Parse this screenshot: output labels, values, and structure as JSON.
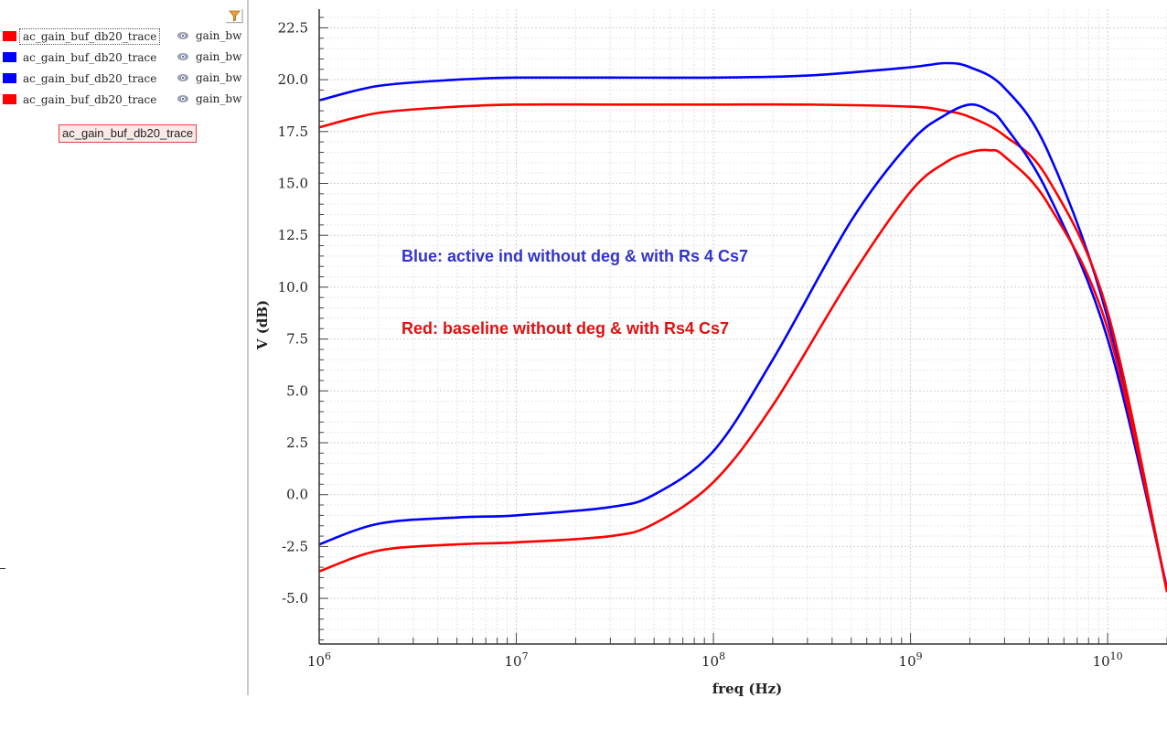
{
  "legend": {
    "items": [
      {
        "name": "ac_gain_buf_db20_trace",
        "bw": "gain_bw",
        "color": "#ff0000"
      },
      {
        "name": "ac_gain_buf_db20_trace",
        "bw": "gain_bw",
        "color": "#0000ff"
      },
      {
        "name": "ac_gain_buf_db20_trace",
        "bw": "gain_bw",
        "color": "#0000ff"
      },
      {
        "name": "ac_gain_buf_db20_trace",
        "bw": "gain_bw",
        "color": "#ff0000"
      }
    ],
    "selected_trace": "ac_gain_buf_db20_trace",
    "filter_icon": "filter-icon",
    "visibility_icon": "eye-icon"
  },
  "chart_data": {
    "type": "line",
    "x_scale": "log",
    "xlabel": "freq (Hz)",
    "ylabel": "V (dB)",
    "xlim": [
      1000000,
      20000000000
    ],
    "ylim": [
      -7.2,
      23.4
    ],
    "x_ticks": [
      {
        "value": 1000000,
        "base": "10",
        "exp": "6"
      },
      {
        "value": 10000000,
        "base": "10",
        "exp": "7"
      },
      {
        "value": 100000000,
        "base": "10",
        "exp": "8"
      },
      {
        "value": 1000000000,
        "base": "10",
        "exp": "9"
      },
      {
        "value": 10000000000,
        "base": "10",
        "exp": "10"
      }
    ],
    "y_ticks": [
      "22.5",
      "20.0",
      "17.5",
      "15.0",
      "12.5",
      "10.0",
      "7.5",
      "5.0",
      "2.5",
      "0.0",
      "-2.5",
      "-5.0"
    ],
    "grid": true,
    "annotations": [
      {
        "text": "Blue: active ind without deg & with Rs 4 Cs7",
        "color": "#3333cc"
      },
      {
        "text": "Red: baseline without deg & with Rs4 Cs7",
        "color": "#dd1111"
      }
    ],
    "series": [
      {
        "color": "#0000ff",
        "x": [
          1000000.0,
          2000000.0,
          5000000.0,
          10000000.0,
          30000000.0,
          100000000.0,
          300000000.0,
          1000000000.0,
          1500000000.0,
          2000000000.0,
          3000000000.0,
          5000000000.0,
          10000000000.0,
          20000000000.0
        ],
        "y": [
          19.0,
          19.7,
          20.0,
          20.1,
          20.1,
          20.1,
          20.2,
          20.6,
          20.8,
          20.6,
          19.6,
          16.5,
          8.5,
          -4.6
        ]
      },
      {
        "color": "#ff0000",
        "x": [
          1000000.0,
          2000000.0,
          5000000.0,
          10000000.0,
          30000000.0,
          100000000.0,
          300000000.0,
          1000000000.0,
          1500000000.0,
          2000000000.0,
          3000000000.0,
          5000000000.0,
          10000000000.0,
          20000000000.0
        ],
        "y": [
          17.7,
          18.4,
          18.7,
          18.8,
          18.8,
          18.8,
          18.8,
          18.7,
          18.5,
          18.2,
          17.3,
          15.2,
          8.8,
          -4.7
        ]
      },
      {
        "color": "#0000ff",
        "x": [
          1000000.0,
          2000000.0,
          5000000.0,
          10000000.0,
          30000000.0,
          50000000.0,
          100000000.0,
          200000000.0,
          500000000.0,
          1000000000.0,
          1500000000.0,
          2000000000.0,
          2500000000.0,
          3000000000.0,
          5000000000.0,
          10000000000.0,
          20000000000.0
        ],
        "y": [
          -2.4,
          -1.4,
          -1.1,
          -1.0,
          -0.6,
          0.0,
          2.1,
          6.5,
          13.2,
          17.0,
          18.3,
          18.8,
          18.5,
          17.8,
          14.5,
          7.5,
          -4.5
        ]
      },
      {
        "color": "#ff0000",
        "x": [
          1000000.0,
          2000000.0,
          5000000.0,
          10000000.0,
          30000000.0,
          50000000.0,
          100000000.0,
          200000000.0,
          500000000.0,
          1000000000.0,
          1500000000.0,
          2000000000.0,
          2500000000.0,
          3000000000.0,
          5000000000.0,
          10000000000.0,
          20000000000.0
        ],
        "y": [
          -3.7,
          -2.7,
          -2.4,
          -2.3,
          -2.0,
          -1.4,
          0.6,
          4.3,
          10.5,
          14.6,
          16.0,
          16.5,
          16.6,
          16.3,
          14.0,
          8.0,
          -4.6
        ]
      }
    ]
  }
}
